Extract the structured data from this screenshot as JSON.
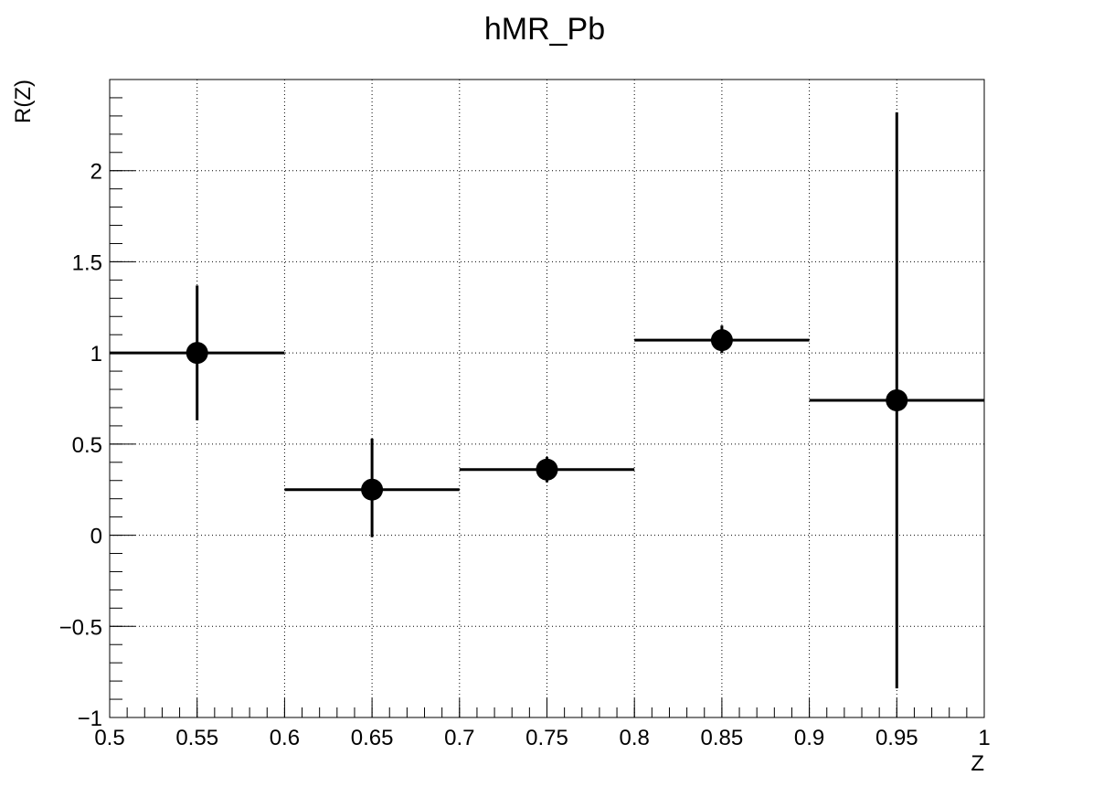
{
  "chart_data": {
    "type": "scatter",
    "title": "hMR_Pb",
    "xlabel": "Z",
    "ylabel": "R(Z)",
    "xlim": [
      0.5,
      1.0
    ],
    "ylim": [
      -1.0,
      2.5
    ],
    "grid": true,
    "x_ticks": [
      "0.5",
      "0.55",
      "0.6",
      "0.65",
      "0.7",
      "0.75",
      "0.8",
      "0.85",
      "0.9",
      "0.95",
      "1"
    ],
    "y_ticks": [
      "−1",
      "−0.5",
      "0",
      "0.5",
      "1",
      "1.5",
      "2"
    ],
    "series": [
      {
        "x": [
          0.55,
          0.65,
          0.75,
          0.85,
          0.95
        ],
        "y": [
          1.0,
          0.25,
          0.36,
          1.07,
          0.74
        ],
        "x_err": [
          0.05,
          0.05,
          0.05,
          0.05,
          0.05
        ],
        "y_err_low": [
          0.37,
          0.26,
          0.07,
          0.07,
          1.58
        ],
        "y_err_high": [
          0.37,
          0.28,
          0.07,
          0.08,
          1.58
        ]
      }
    ]
  }
}
